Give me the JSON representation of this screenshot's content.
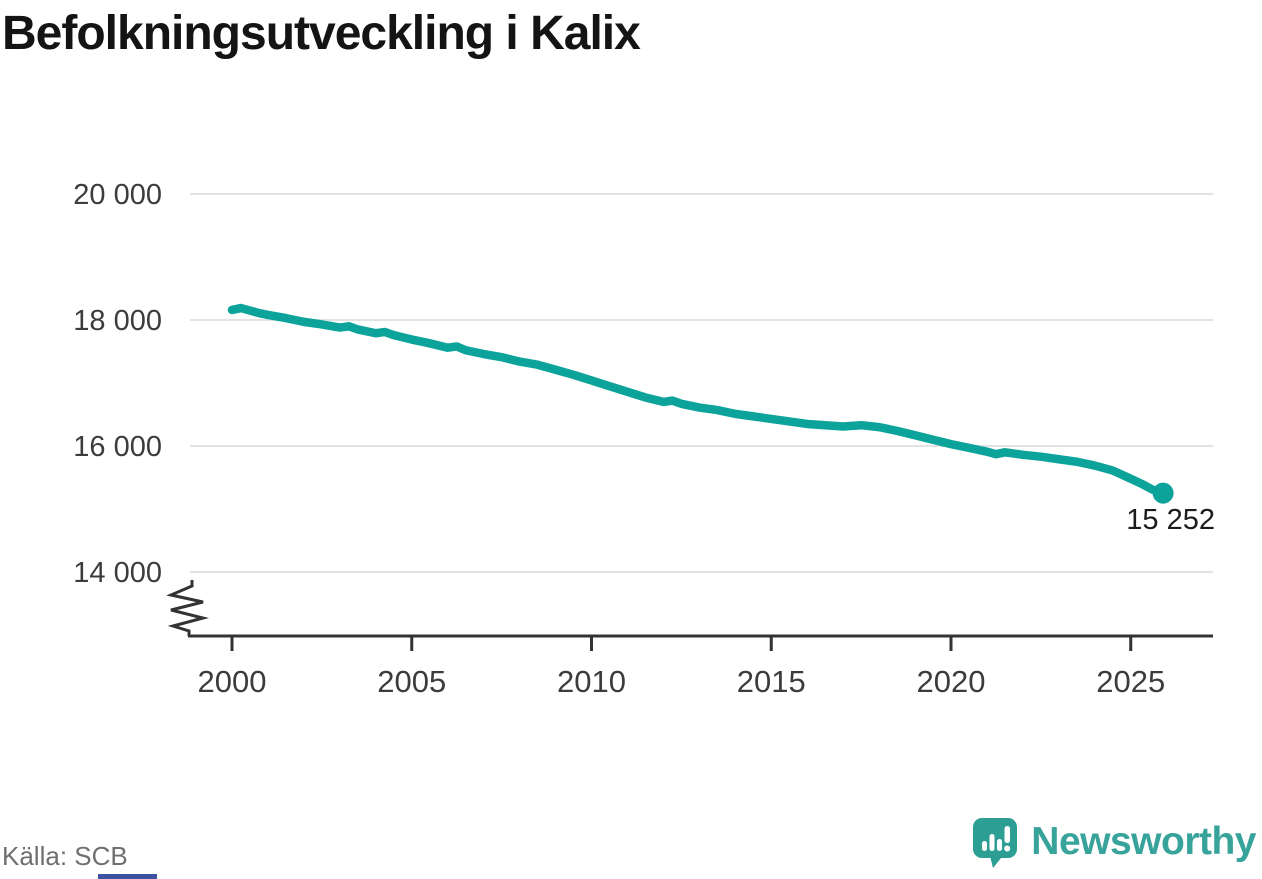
{
  "title": "Befolkningsutveckling i Kalix",
  "source": "Källa: SCB",
  "logo": {
    "text": "Newsworthy"
  },
  "colors": {
    "line": "#0ba39a",
    "grid": "#e2e2e2",
    "axis": "#333333",
    "tick_text": "#3c3c3c",
    "annotation_text": "#1b1b1b",
    "logo_teal": "#37a39a",
    "accent_bar": "#3f51a3"
  },
  "chart_data": {
    "type": "line",
    "title": "Befolkningsutveckling i Kalix",
    "xlabel": "",
    "ylabel": "",
    "x_ticks": [
      2000,
      2005,
      2010,
      2015,
      2020,
      2025
    ],
    "x_tick_labels": [
      "2000",
      "2005",
      "2010",
      "2015",
      "2020",
      "2025"
    ],
    "y_ticks": [
      14000,
      16000,
      18000,
      20000
    ],
    "y_tick_labels": [
      "14 000",
      "16 000",
      "18 000",
      "20 000"
    ],
    "xlim": [
      1998.8,
      2027.3
    ],
    "ylim": [
      13000,
      20500
    ],
    "axis_break": true,
    "grid": "horizontal",
    "legend": "none",
    "last_point_label": "15 252",
    "last_point_value": 15252,
    "series": [
      {
        "name": "Befolkning i Kalix",
        "points": [
          [
            2000.0,
            18160
          ],
          [
            2000.25,
            18190
          ],
          [
            2000.5,
            18150
          ],
          [
            2000.75,
            18110
          ],
          [
            2001.0,
            18080
          ],
          [
            2001.5,
            18030
          ],
          [
            2002.0,
            17970
          ],
          [
            2002.5,
            17930
          ],
          [
            2003.0,
            17880
          ],
          [
            2003.25,
            17900
          ],
          [
            2003.5,
            17850
          ],
          [
            2004.0,
            17790
          ],
          [
            2004.25,
            17810
          ],
          [
            2004.5,
            17760
          ],
          [
            2005.0,
            17690
          ],
          [
            2005.5,
            17630
          ],
          [
            2006.0,
            17560
          ],
          [
            2006.25,
            17580
          ],
          [
            2006.5,
            17520
          ],
          [
            2007.0,
            17460
          ],
          [
            2007.5,
            17410
          ],
          [
            2008.0,
            17340
          ],
          [
            2008.5,
            17290
          ],
          [
            2009.0,
            17210
          ],
          [
            2009.5,
            17130
          ],
          [
            2010.0,
            17040
          ],
          [
            2010.5,
            16950
          ],
          [
            2011.0,
            16860
          ],
          [
            2011.5,
            16770
          ],
          [
            2012.0,
            16700
          ],
          [
            2012.25,
            16720
          ],
          [
            2012.5,
            16670
          ],
          [
            2013.0,
            16610
          ],
          [
            2013.5,
            16570
          ],
          [
            2014.0,
            16510
          ],
          [
            2014.5,
            16470
          ],
          [
            2015.0,
            16430
          ],
          [
            2015.5,
            16390
          ],
          [
            2016.0,
            16350
          ],
          [
            2016.5,
            16330
          ],
          [
            2017.0,
            16310
          ],
          [
            2017.5,
            16330
          ],
          [
            2018.0,
            16300
          ],
          [
            2018.5,
            16240
          ],
          [
            2019.0,
            16170
          ],
          [
            2019.5,
            16100
          ],
          [
            2020.0,
            16030
          ],
          [
            2020.5,
            15970
          ],
          [
            2021.0,
            15910
          ],
          [
            2021.25,
            15870
          ],
          [
            2021.5,
            15900
          ],
          [
            2022.0,
            15860
          ],
          [
            2022.5,
            15830
          ],
          [
            2023.0,
            15790
          ],
          [
            2023.5,
            15750
          ],
          [
            2024.0,
            15690
          ],
          [
            2024.5,
            15610
          ],
          [
            2025.0,
            15480
          ],
          [
            2025.3,
            15400
          ],
          [
            2025.6,
            15310
          ],
          [
            2025.9,
            15252
          ]
        ]
      }
    ],
    "source": "Källa: SCB"
  }
}
